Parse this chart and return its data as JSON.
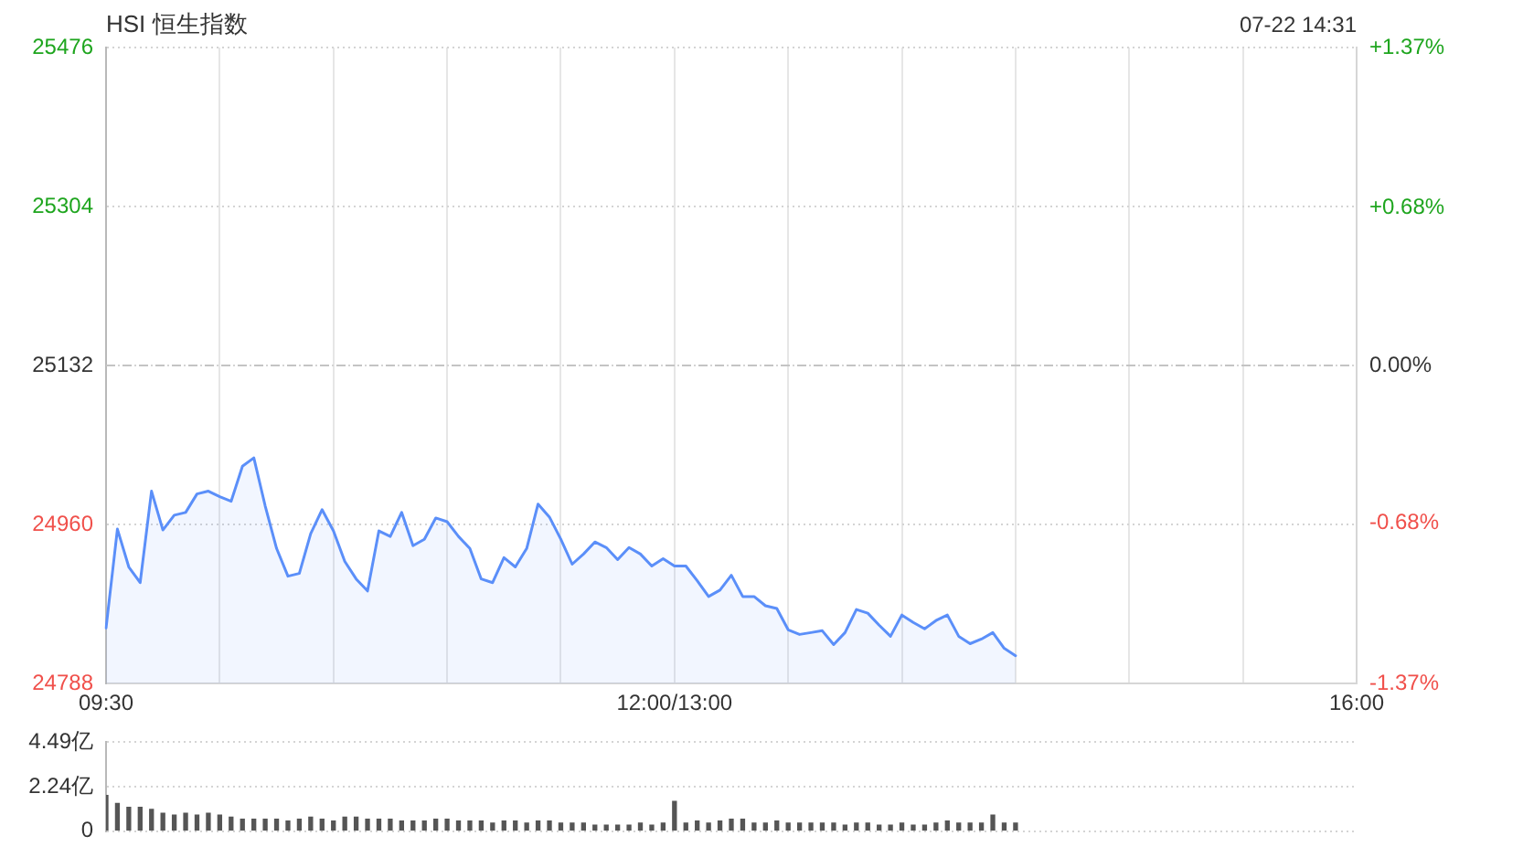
{
  "chart_data": [
    {
      "type": "area",
      "title": "HSI 恒生指数",
      "annotations": [
        "07-22 14:31"
      ],
      "categories": [
        "09:30",
        null,
        null,
        null,
        null,
        null,
        null,
        null,
        null,
        null,
        null,
        null,
        null,
        null,
        null,
        null,
        null,
        null,
        null,
        null,
        null,
        null,
        null,
        null,
        null,
        null,
        null,
        null,
        null,
        null,
        null,
        null,
        null,
        null,
        null,
        null,
        null,
        null,
        null,
        null,
        null,
        null,
        null,
        null,
        null,
        null,
        null,
        null,
        null,
        null,
        "12:00/13:00",
        null,
        null,
        null,
        null,
        null,
        null,
        null,
        null,
        null,
        null,
        null,
        null,
        null,
        null,
        null,
        null,
        null,
        null,
        null,
        null,
        null,
        null,
        null,
        null,
        null,
        null,
        null,
        null,
        null,
        null,
        null,
        null,
        null,
        null,
        null,
        null,
        null,
        null,
        null,
        null,
        null,
        null,
        null,
        null,
        null,
        null,
        null,
        null,
        null,
        null,
        null,
        null,
        null,
        null,
        null,
        null,
        null,
        null,
        null,
        "16:00"
      ],
      "values": [
        24848,
        24955,
        24914,
        24897,
        24996,
        24954,
        24970,
        24973,
        24993,
        24996,
        24990,
        24985,
        25023,
        25032,
        24980,
        24934,
        24904,
        24907,
        24950,
        24976,
        24953,
        24920,
        24901,
        24888,
        24953,
        24947,
        24973,
        24937,
        24944,
        24967,
        24963,
        24947,
        24934,
        24901,
        24897,
        24924,
        24914,
        24934,
        24982,
        24968,
        24944,
        24917,
        24928,
        24941,
        24935,
        24922,
        24935,
        24928,
        24915,
        24923,
        24915,
        24915,
        24899,
        24882,
        24889,
        24905,
        24882,
        24882,
        24872,
        24869,
        24846,
        24841,
        24843,
        24845,
        24830,
        24843,
        24868,
        24864,
        24851,
        24839,
        24862,
        24854,
        24847,
        24856,
        24862,
        24839,
        24831,
        24836,
        24843,
        24826,
        24818,
        null,
        null,
        null,
        null,
        null,
        null,
        null,
        null,
        null,
        null,
        null,
        null,
        null,
        null,
        null,
        null,
        null,
        null,
        null,
        null,
        null,
        null,
        null,
        null,
        null,
        null,
        null,
        null,
        null,
        null
      ],
      "color": "#5b8ff9",
      "ylim": [
        24788,
        25476
      ],
      "yticks": [
        24788,
        24960,
        25132,
        25304,
        25476
      ],
      "y2lim": [
        -1.37,
        1.37
      ],
      "y2ticks": [
        {
          "value": -1.37,
          "label": "-1.37%"
        },
        {
          "value": -0.68,
          "label": "-0.68%"
        },
        {
          "value": 0,
          "label": "0.00%"
        },
        {
          "value": 0.68,
          "label": "+0.68%"
        },
        {
          "value": 1.37,
          "label": "+1.37%"
        }
      ],
      "ref_lines": [
        {
          "axis": "y",
          "value": 25132,
          "color": "#c4c4c4",
          "line_style": "dashed"
        }
      ],
      "grid": true
    },
    {
      "type": "bar",
      "categories": [
        null,
        null,
        null,
        null,
        null,
        null,
        null,
        null,
        null,
        null,
        null,
        null,
        null,
        null,
        null,
        null,
        null,
        null,
        null,
        null,
        null,
        null,
        null,
        null,
        null,
        null,
        null,
        null,
        null,
        null,
        null,
        null,
        null,
        null,
        null,
        null,
        null,
        null,
        null,
        null,
        null,
        null,
        null,
        null,
        null,
        null,
        null,
        null,
        null,
        null,
        null,
        null,
        null,
        null,
        null,
        null,
        null,
        null,
        null,
        null,
        null,
        null,
        null,
        null,
        null,
        null,
        null,
        null,
        null,
        null,
        null,
        null,
        null,
        null,
        null,
        null,
        null,
        null,
        null,
        null,
        null,
        null,
        null,
        null,
        null,
        null,
        null,
        null,
        null,
        null,
        null,
        null,
        null,
        null,
        null,
        null,
        null,
        null,
        null,
        null,
        null,
        null,
        null,
        null,
        null,
        null,
        null,
        null,
        null,
        null,
        null
      ],
      "values": [
        1.8,
        1.4,
        1.2,
        1.2,
        1.1,
        0.9,
        0.8,
        0.9,
        0.8,
        0.9,
        0.8,
        0.7,
        0.6,
        0.6,
        0.6,
        0.6,
        0.5,
        0.6,
        0.7,
        0.6,
        0.5,
        0.7,
        0.7,
        0.6,
        0.6,
        0.6,
        0.5,
        0.5,
        0.5,
        0.6,
        0.6,
        0.5,
        0.5,
        0.5,
        0.4,
        0.5,
        0.5,
        0.4,
        0.5,
        0.5,
        0.4,
        0.4,
        0.4,
        0.3,
        0.3,
        0.3,
        0.3,
        0.4,
        0.3,
        0.4,
        1.5,
        0.4,
        0.5,
        0.4,
        0.5,
        0.6,
        0.6,
        0.4,
        0.4,
        0.5,
        0.4,
        0.4,
        0.4,
        0.4,
        0.4,
        0.3,
        0.4,
        0.4,
        0.3,
        0.3,
        0.4,
        0.3,
        0.3,
        0.4,
        0.5,
        0.4,
        0.4,
        0.4,
        0.8,
        0.4,
        0.4,
        null,
        null,
        null,
        null,
        null,
        null,
        null,
        null,
        null,
        null,
        null,
        null,
        null,
        null,
        null,
        null,
        null,
        null,
        null,
        null,
        null,
        null,
        null,
        null,
        null,
        null,
        null,
        null,
        null,
        null
      ],
      "color": "#555555",
      "ylim": [
        0,
        4.49
      ],
      "yticks": [
        0,
        {
          "value": 2.24,
          "label": "2.24亿"
        },
        {
          "value": 4.49,
          "label": "4.49亿"
        }
      ],
      "grid": "y"
    }
  ]
}
